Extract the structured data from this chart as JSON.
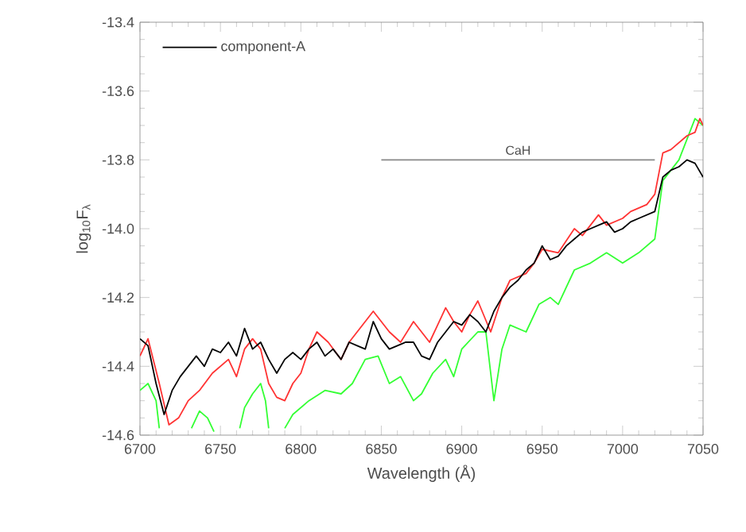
{
  "chart_data": {
    "type": "line",
    "xlabel": "Wavelength (Å)",
    "ylabel": "log$_{10}$F$_{λ}$",
    "xlim": [
      6700,
      7050
    ],
    "xticks": [
      6700,
      6750,
      6800,
      6850,
      6900,
      6950,
      7000,
      7050
    ],
    "ylim": [
      -14.6,
      -13.4
    ],
    "yticks": [
      -14.6,
      -14.4,
      -14.2,
      {
        "value": -14.0,
        "label": "-14.0"
      },
      -13.8,
      -13.6,
      -13.4
    ],
    "grid": false,
    "legend": "top left",
    "marker": "none",
    "line_style": "solid",
    "annotations": [
      {
        "text": "CaH",
        "x": 6935,
        "y": -13.8
      }
    ],
    "series": [
      {
        "name": "component-A",
        "color": "#000000",
        "x": [
          6700,
          6705,
          6710,
          6715,
          6720,
          6725,
          6730,
          6735,
          6740,
          6745,
          6750,
          6755,
          6760,
          6765,
          6770,
          6775,
          6780,
          6785,
          6790,
          6795,
          6800,
          6805,
          6810,
          6815,
          6820,
          6825,
          6830,
          6835,
          6840,
          6845,
          6850,
          6855,
          6860,
          6865,
          6870,
          6875,
          6880,
          6885,
          6890,
          6895,
          6900,
          6905,
          6910,
          6915,
          6920,
          6925,
          6930,
          6935,
          6940,
          6945,
          6950,
          6955,
          6960,
          6965,
          6970,
          6975,
          6980,
          6985,
          6990,
          6995,
          7000,
          7005,
          7010,
          7015,
          7020,
          7025,
          7030,
          7035,
          7040,
          7045,
          7050
        ],
        "values": [
          -14.32,
          -14.34,
          -14.45,
          -14.54,
          -14.47,
          -14.43,
          -14.4,
          -14.37,
          -14.4,
          -14.35,
          -14.36,
          -14.33,
          -14.37,
          -14.29,
          -14.35,
          -14.33,
          -14.38,
          -14.42,
          -14.38,
          -14.36,
          -14.38,
          -14.35,
          -14.33,
          -14.37,
          -14.35,
          -14.38,
          -14.33,
          -14.34,
          -14.35,
          -14.27,
          -14.32,
          -14.35,
          -14.34,
          -14.33,
          -14.33,
          -14.37,
          -14.38,
          -14.33,
          -14.3,
          -14.27,
          -14.28,
          -14.25,
          -14.27,
          -14.3,
          -14.24,
          -14.2,
          -14.17,
          -14.15,
          -14.12,
          -14.1,
          -14.05,
          -14.09,
          -14.08,
          -14.05,
          -14.03,
          -14.01,
          -14.0,
          -13.99,
          -13.98,
          -14.01,
          -14.0,
          -13.98,
          -13.97,
          -13.96,
          -13.95,
          -13.85,
          -13.83,
          -13.82,
          -13.8,
          -13.81,
          -13.85
        ]
      },
      {
        "color": "#ff3333",
        "x": [
          6700,
          6705,
          6712,
          6718,
          6724,
          6730,
          6737,
          6745,
          6755,
          6760,
          6765,
          6770,
          6775,
          6780,
          6785,
          6790,
          6795,
          6800,
          6805,
          6810,
          6817,
          6825,
          6830,
          6835,
          6845,
          6850,
          6855,
          6862,
          6870,
          6875,
          6880,
          6885,
          6890,
          6895,
          6900,
          6905,
          6910,
          6918,
          6925,
          6930,
          6940,
          6945,
          6950,
          6960,
          6970,
          6975,
          6985,
          6990,
          7000,
          7005,
          7015,
          7020,
          7025,
          7030,
          7040,
          7045,
          7048,
          7050
        ],
        "values": [
          -14.37,
          -14.32,
          -14.45,
          -14.57,
          -14.55,
          -14.5,
          -14.47,
          -14.42,
          -14.38,
          -14.43,
          -14.35,
          -14.32,
          -14.35,
          -14.45,
          -14.49,
          -14.5,
          -14.45,
          -14.42,
          -14.35,
          -14.3,
          -14.33,
          -14.38,
          -14.33,
          -14.3,
          -14.24,
          -14.27,
          -14.3,
          -14.33,
          -14.27,
          -14.3,
          -14.33,
          -14.28,
          -14.23,
          -14.27,
          -14.3,
          -14.25,
          -14.21,
          -14.3,
          -14.2,
          -14.15,
          -14.13,
          -14.1,
          -14.06,
          -14.07,
          -14.0,
          -14.02,
          -13.96,
          -13.99,
          -13.97,
          -13.95,
          -13.93,
          -13.9,
          -13.78,
          -13.77,
          -13.73,
          -13.72,
          -13.68,
          -13.7
        ]
      },
      {
        "color": "#33ff33",
        "x": [
          6700,
          6705,
          6710,
          6712,
          6720,
          6732,
          6737,
          6742,
          6746,
          6755,
          6762,
          6765,
          6770,
          6775,
          6778,
          6780,
          6785,
          6790,
          6795,
          6805,
          6815,
          6825,
          6832,
          6840,
          6848,
          6855,
          6862,
          6870,
          6875,
          6882,
          6890,
          6895,
          6900,
          6910,
          6915,
          6920,
          6925,
          6930,
          6940,
          6948,
          6955,
          6960,
          6970,
          6980,
          6990,
          7000,
          7010,
          7020,
          7025,
          7035,
          7045,
          7050
        ],
        "values": [
          -14.47,
          -14.45,
          -14.5,
          -14.58,
          null,
          -14.58,
          -14.53,
          -14.55,
          -14.59,
          null,
          -14.58,
          -14.52,
          -14.48,
          -14.45,
          -14.5,
          -14.58,
          null,
          -14.58,
          -14.54,
          -14.5,
          -14.47,
          -14.48,
          -14.45,
          -14.38,
          -14.37,
          -14.45,
          -14.43,
          -14.5,
          -14.48,
          -14.42,
          -14.38,
          -14.43,
          -14.35,
          -14.3,
          -14.3,
          -14.5,
          -14.35,
          -14.28,
          -14.3,
          -14.22,
          -14.2,
          -14.22,
          -14.12,
          -14.1,
          -14.07,
          -14.1,
          -14.07,
          -14.03,
          -13.86,
          -13.8,
          -13.68,
          -13.7
        ]
      },
      {
        "color": "#888888",
        "x": [
          6850,
          7020
        ],
        "values": [
          -13.8,
          -13.8
        ]
      }
    ]
  }
}
